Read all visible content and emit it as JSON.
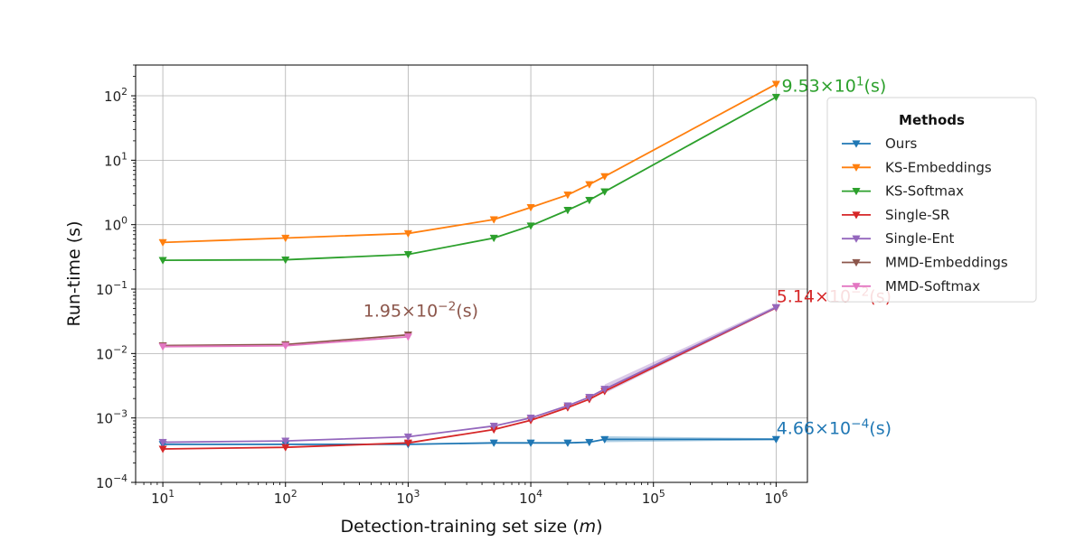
{
  "chart_data": {
    "type": "line",
    "title": "",
    "xlabel_prefix": "Detection-training set size (",
    "xlabel_var": "m",
    "xlabel_suffix": ")",
    "ylabel": "Run-time (s)",
    "xscale": "log",
    "yscale": "log",
    "xlim": [
      6,
      1800000
    ],
    "ylim": [
      0.0001,
      300
    ],
    "grid": true,
    "x_ticks": [
      {
        "base": "10",
        "exp": "1"
      },
      {
        "base": "10",
        "exp": "2"
      },
      {
        "base": "10",
        "exp": "3"
      },
      {
        "base": "10",
        "exp": "4"
      },
      {
        "base": "10",
        "exp": "5"
      },
      {
        "base": "10",
        "exp": "6"
      }
    ],
    "y_ticks": [
      {
        "base": "10",
        "exp": "−4"
      },
      {
        "base": "10",
        "exp": "−3"
      },
      {
        "base": "10",
        "exp": "−2"
      },
      {
        "base": "10",
        "exp": "−1"
      },
      {
        "base": "10",
        "exp": "0"
      },
      {
        "base": "10",
        "exp": "1"
      },
      {
        "base": "10",
        "exp": "2"
      }
    ],
    "legend_title": "Methods",
    "legend_position": "right",
    "series": [
      {
        "name": "Ours",
        "color": "#1f77b4",
        "x": [
          10,
          100,
          1000,
          5000,
          10000,
          20000,
          30000,
          40000,
          1000000
        ],
        "y": [
          0.00039,
          0.00039,
          0.00039,
          0.00041,
          0.00041,
          0.00041,
          0.00042,
          0.000465,
          0.000466
        ],
        "band_from": 7,
        "band_lo": 0.00042,
        "band_hi": 0.00052
      },
      {
        "name": "KS-Embeddings",
        "color": "#ff7f0e",
        "x": [
          10,
          100,
          1000,
          5000,
          10000,
          20000,
          30000,
          40000,
          1000000
        ],
        "y": [
          0.53,
          0.62,
          0.73,
          1.2,
          1.85,
          2.9,
          4.2,
          5.6,
          152
        ]
      },
      {
        "name": "KS-Softmax",
        "color": "#2ca02c",
        "x": [
          10,
          100,
          1000,
          5000,
          10000,
          20000,
          30000,
          40000,
          1000000
        ],
        "y": [
          0.28,
          0.285,
          0.345,
          0.62,
          0.96,
          1.68,
          2.4,
          3.25,
          95.3
        ]
      },
      {
        "name": "Single-SR",
        "color": "#d62728",
        "x": [
          10,
          100,
          1000,
          5000,
          10000,
          20000,
          30000,
          40000,
          1000000
        ],
        "y": [
          0.00033,
          0.00035,
          0.00041,
          0.00066,
          0.00092,
          0.00145,
          0.00195,
          0.0026,
          0.0514
        ]
      },
      {
        "name": "Single-Ent",
        "color": "#9467bd",
        "x": [
          10,
          100,
          1000,
          5000,
          10000,
          20000,
          30000,
          40000,
          1000000
        ],
        "y": [
          0.00042,
          0.00044,
          0.00051,
          0.00075,
          0.001,
          0.00155,
          0.0021,
          0.0028,
          0.052
        ],
        "band_from": 7,
        "band_lo": 0.0024,
        "band_hi": 0.0033
      },
      {
        "name": "MMD-Embeddings",
        "color": "#8c564b",
        "x": [
          10,
          100,
          1000
        ],
        "y": [
          0.0133,
          0.0138,
          0.0195
        ]
      },
      {
        "name": "MMD-Softmax",
        "color": "#e377c2",
        "x": [
          10,
          100,
          1000
        ],
        "y": [
          0.0128,
          0.0132,
          0.0182
        ]
      }
    ],
    "annotations": [
      {
        "mantissa": "9.53×10",
        "exp": "1",
        "unit": "(s)",
        "color": "#2ca02c",
        "x": 1000000,
        "y": 95.3,
        "anchor": "end-over"
      },
      {
        "mantissa": "5.14×10",
        "exp": "−2",
        "unit": "(s)",
        "color": "#d62728",
        "x": 1000000,
        "y": 0.0514,
        "anchor": "end-over"
      },
      {
        "mantissa": "1.95×10",
        "exp": "−2",
        "unit": "(s)",
        "color": "#8c564b",
        "x": 1000,
        "y": 0.0195,
        "anchor": "mid-over"
      },
      {
        "mantissa": "4.66×10",
        "exp": "−4",
        "unit": "(s)",
        "color": "#1f77b4",
        "x": 1000000,
        "y": 0.000466,
        "anchor": "end-over"
      }
    ]
  }
}
